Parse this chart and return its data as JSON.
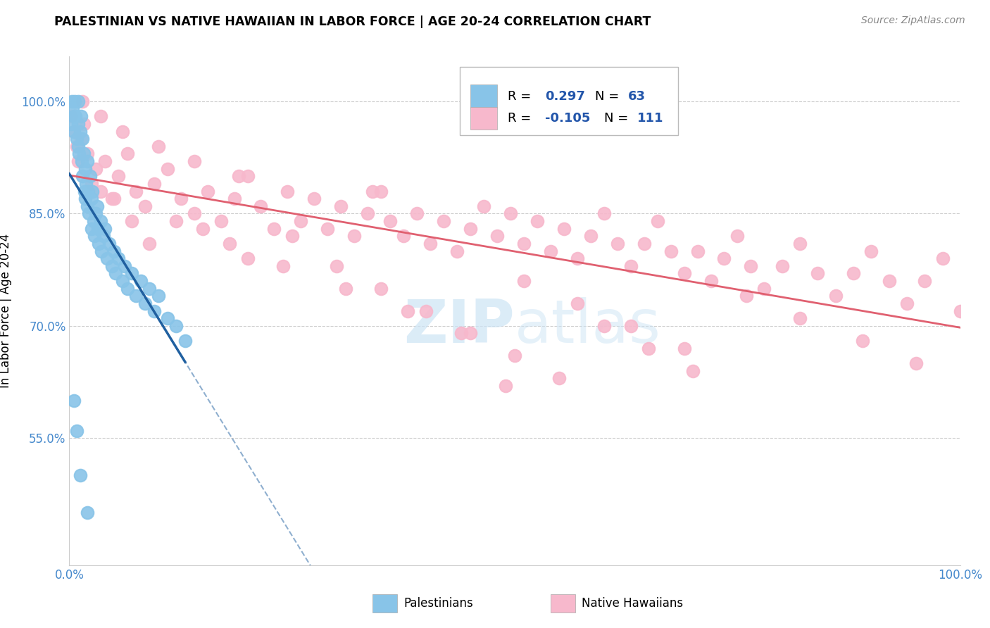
{
  "title": "PALESTINIAN VS NATIVE HAWAIIAN IN LABOR FORCE | AGE 20-24 CORRELATION CHART",
  "source": "Source: ZipAtlas.com",
  "ylabel": "In Labor Force | Age 20-24",
  "xlim": [
    0.0,
    1.0
  ],
  "ylim": [
    0.38,
    1.06
  ],
  "yticks": [
    0.55,
    0.7,
    0.85,
    1.0
  ],
  "ytick_labels": [
    "55.0%",
    "70.0%",
    "85.0%",
    "100.0%"
  ],
  "xticks": [
    0.0,
    0.25,
    0.5,
    0.75,
    1.0
  ],
  "xtick_labels": [
    "0.0%",
    "",
    "",
    "",
    "100.0%"
  ],
  "blue_color": "#88c4e8",
  "pink_color": "#f7b8cc",
  "blue_line_color": "#2060a0",
  "pink_line_color": "#e06070",
  "tick_color": "#4488cc",
  "r_value_color": "#2255aa",
  "watermark_color": "#cce4f5",
  "palestinians_x": [
    0.002,
    0.003,
    0.004,
    0.005,
    0.005,
    0.006,
    0.007,
    0.008,
    0.01,
    0.01,
    0.01,
    0.011,
    0.012,
    0.013,
    0.014,
    0.015,
    0.015,
    0.016,
    0.017,
    0.018,
    0.018,
    0.019,
    0.02,
    0.02,
    0.021,
    0.022,
    0.023,
    0.025,
    0.025,
    0.026,
    0.027,
    0.028,
    0.03,
    0.031,
    0.032,
    0.033,
    0.035,
    0.036,
    0.038,
    0.04,
    0.042,
    0.045,
    0.048,
    0.05,
    0.052,
    0.055,
    0.06,
    0.062,
    0.065,
    0.07,
    0.075,
    0.08,
    0.085,
    0.09,
    0.095,
    0.1,
    0.11,
    0.12,
    0.13,
    0.005,
    0.008,
    0.012,
    0.02
  ],
  "palestinians_y": [
    0.97,
    1.0,
    0.99,
    0.98,
    0.96,
    1.0,
    0.98,
    0.95,
    1.0,
    0.97,
    0.94,
    0.93,
    0.96,
    0.98,
    0.92,
    0.95,
    0.9,
    0.93,
    0.88,
    0.91,
    0.87,
    0.89,
    0.92,
    0.86,
    0.88,
    0.85,
    0.9,
    0.87,
    0.83,
    0.88,
    0.84,
    0.82,
    0.85,
    0.86,
    0.83,
    0.81,
    0.84,
    0.8,
    0.82,
    0.83,
    0.79,
    0.81,
    0.78,
    0.8,
    0.77,
    0.79,
    0.76,
    0.78,
    0.75,
    0.77,
    0.74,
    0.76,
    0.73,
    0.75,
    0.72,
    0.74,
    0.71,
    0.7,
    0.68,
    0.6,
    0.56,
    0.5,
    0.45
  ],
  "hawaiians_x": [
    0.002,
    0.005,
    0.008,
    0.01,
    0.013,
    0.016,
    0.02,
    0.025,
    0.03,
    0.035,
    0.04,
    0.048,
    0.055,
    0.065,
    0.075,
    0.085,
    0.095,
    0.11,
    0.125,
    0.14,
    0.155,
    0.17,
    0.185,
    0.2,
    0.215,
    0.23,
    0.245,
    0.26,
    0.275,
    0.29,
    0.305,
    0.32,
    0.335,
    0.35,
    0.36,
    0.375,
    0.39,
    0.405,
    0.42,
    0.435,
    0.45,
    0.465,
    0.48,
    0.495,
    0.51,
    0.525,
    0.54,
    0.555,
    0.57,
    0.585,
    0.6,
    0.615,
    0.63,
    0.645,
    0.66,
    0.675,
    0.69,
    0.705,
    0.72,
    0.735,
    0.75,
    0.765,
    0.78,
    0.8,
    0.82,
    0.84,
    0.86,
    0.88,
    0.9,
    0.92,
    0.94,
    0.96,
    0.98,
    1.0,
    0.07,
    0.09,
    0.15,
    0.2,
    0.25,
    0.3,
    0.35,
    0.4,
    0.45,
    0.5,
    0.55,
    0.6,
    0.65,
    0.7,
    0.05,
    0.12,
    0.18,
    0.24,
    0.31,
    0.38,
    0.44,
    0.51,
    0.57,
    0.63,
    0.69,
    0.76,
    0.82,
    0.89,
    0.95,
    0.015,
    0.035,
    0.06,
    0.1,
    0.14,
    0.19,
    0.34,
    0.49
  ],
  "hawaiians_y": [
    0.98,
    0.96,
    0.94,
    0.92,
    0.95,
    0.97,
    0.93,
    0.89,
    0.91,
    0.88,
    0.92,
    0.87,
    0.9,
    0.93,
    0.88,
    0.86,
    0.89,
    0.91,
    0.87,
    0.85,
    0.88,
    0.84,
    0.87,
    0.9,
    0.86,
    0.83,
    0.88,
    0.84,
    0.87,
    0.83,
    0.86,
    0.82,
    0.85,
    0.88,
    0.84,
    0.82,
    0.85,
    0.81,
    0.84,
    0.8,
    0.83,
    0.86,
    0.82,
    0.85,
    0.81,
    0.84,
    0.8,
    0.83,
    0.79,
    0.82,
    0.85,
    0.81,
    0.78,
    0.81,
    0.84,
    0.8,
    0.77,
    0.8,
    0.76,
    0.79,
    0.82,
    0.78,
    0.75,
    0.78,
    0.81,
    0.77,
    0.74,
    0.77,
    0.8,
    0.76,
    0.73,
    0.76,
    0.79,
    0.72,
    0.84,
    0.81,
    0.83,
    0.79,
    0.82,
    0.78,
    0.75,
    0.72,
    0.69,
    0.66,
    0.63,
    0.7,
    0.67,
    0.64,
    0.87,
    0.84,
    0.81,
    0.78,
    0.75,
    0.72,
    0.69,
    0.76,
    0.73,
    0.7,
    0.67,
    0.74,
    0.71,
    0.68,
    0.65,
    1.0,
    0.98,
    0.96,
    0.94,
    0.92,
    0.9,
    0.88,
    0.62
  ]
}
